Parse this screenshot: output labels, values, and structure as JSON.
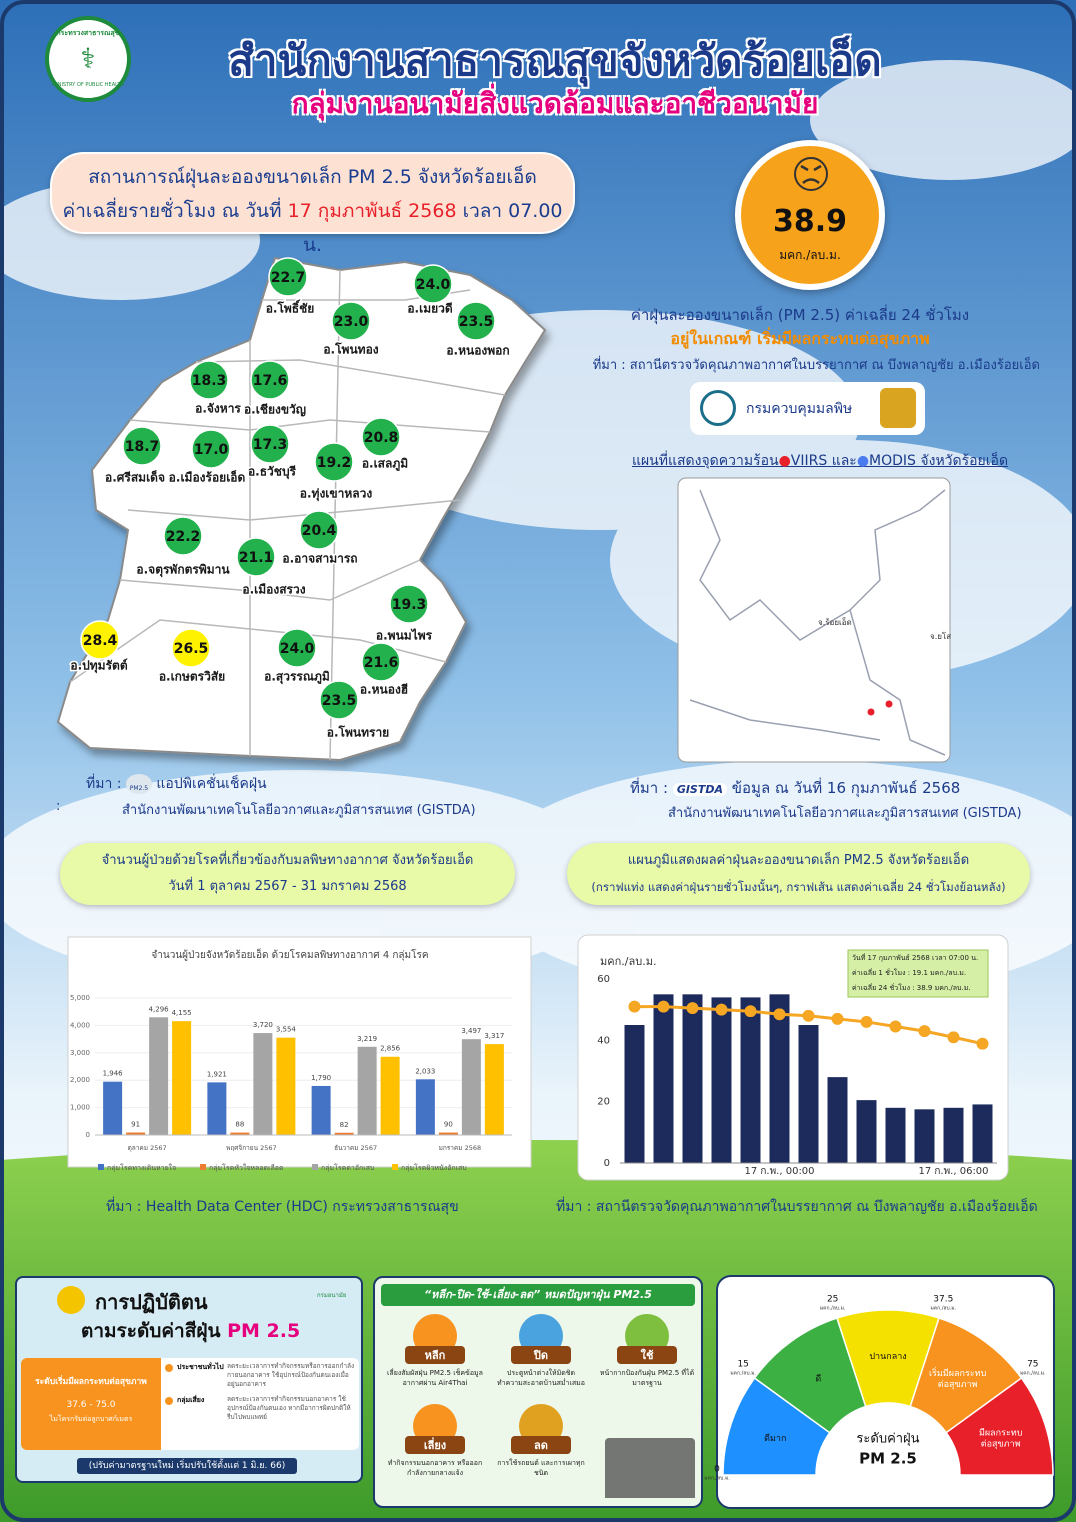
{
  "header": {
    "logo_text": "กระทรวงสาธารณสุข",
    "logo_subtext": "MINISTRY OF PUBLIC HEALTH",
    "title": "สำนักงานสาธารณสุขจังหวัดร้อยเอ็ด",
    "subtitle": "กลุ่มงานอนามัยสิ่งแวดล้อมและอาชีวอนามัย"
  },
  "situation": {
    "line1": "สถานการณ์ฝุ่นละอองขนาดเล็ก PM 2.5 จังหวัดร้อยเอ็ด",
    "line2_prefix": "ค่าเฉลี่ยรายชั่วโมง ณ วันที่",
    "line2_date": "17 กุมภาพันธ์ 2568",
    "line2_suffix": "เวลา 07.00 น."
  },
  "aqi": {
    "value": "38.9",
    "unit": "มคก./ลบ.ม.",
    "description": "ค่าฝุ่นละอองขนาดเล็ก (PM 2.5) ค่าเฉลี่ย 24 ชั่วโมง",
    "status": "อยู่ในเกณฑ์ เริ่มมีผลกระทบต่อสุขภาพ",
    "source": "ที่มา : สถานีตรวจวัดคุณภาพอากาศในบรรยากาศ ณ บึงพลาญชัย อ.เมืองร้อยเอ็ด",
    "logo_text": "กรมควบคุมมลพิษ"
  },
  "district_map": {
    "districts": [
      {
        "name": "อ.โพธิ์ชัย",
        "value": "22.7",
        "color": "#22b14c"
      },
      {
        "name": "อ.เมยวดี",
        "value": "24.0",
        "color": "#22b14c"
      },
      {
        "name": "อ.โพนทอง",
        "value": "23.0",
        "color": "#22b14c"
      },
      {
        "name": "อ.หนองพอก",
        "value": "23.5",
        "color": "#22b14c"
      },
      {
        "name": "อ.จังหาร",
        "value": "18.3",
        "color": "#22b14c"
      },
      {
        "name": "อ.เชียงขวัญ",
        "value": "17.6",
        "color": "#22b14c"
      },
      {
        "name": "อ.ศรีสมเด็จ",
        "value": "18.7",
        "color": "#22b14c"
      },
      {
        "name": "อ.เมืองร้อยเอ็ด",
        "value": "17.0",
        "color": "#22b14c"
      },
      {
        "name": "อ.ธวัชบุรี",
        "value": "17.3",
        "color": "#22b14c"
      },
      {
        "name": "อ.ทุ่งเขาหลวง",
        "value": "19.2",
        "color": "#22b14c"
      },
      {
        "name": "อ.เสลภูมิ",
        "value": "20.8",
        "color": "#22b14c"
      },
      {
        "name": "อ.อาจสามารถ",
        "value": "20.4",
        "color": "#22b14c"
      },
      {
        "name": "อ.จตุรพักตรพิมาน",
        "value": "22.2",
        "color": "#22b14c"
      },
      {
        "name": "อ.เมืองสรวง",
        "value": "21.1",
        "color": "#22b14c"
      },
      {
        "name": "อ.พนมไพร",
        "value": "19.3",
        "color": "#22b14c"
      },
      {
        "name": "อ.ปทุมรัตต์",
        "value": "28.4",
        "color": "#fff200"
      },
      {
        "name": "อ.เกษตรวิสัย",
        "value": "26.5",
        "color": "#fff200"
      },
      {
        "name": "อ.สุวรรณภูมิ",
        "value": "24.0",
        "color": "#22b14c"
      },
      {
        "name": "อ.หนองฮี",
        "value": "21.6",
        "color": "#22b14c"
      },
      {
        "name": "อ.โพนทราย",
        "value": "23.5",
        "color": "#22b14c"
      }
    ],
    "source_label": "ที่มา :",
    "app_icon": "PM2.5",
    "source_app": "แอปพิเคชั่นเช็คฝุ่น",
    "source_sep": ":",
    "source_org": "สำนักงานพัฒนาเทคโนโลยีอวกาศและภูมิสารสนเทศ (GISTDA)"
  },
  "hotspot_map": {
    "title_prefix": "แผนที่แสดงจุดความร้อน",
    "viirs": "VIIRS",
    "and": "และ",
    "modis": "MODIS",
    "title_suffix": "จังหวัดร้อยเอ็ด",
    "labels": [
      "จ.ร้อยเอ็ด",
      "จ.ยโส"
    ],
    "source_label": "ที่มา :",
    "source_logo": "GISTDA",
    "source_date": "ข้อมูล ณ วันที่ 16 กุมภาพันธ์ 2568",
    "source_org": "สำนักงานพัฒนาเทคโนโลยีอวกาศและภูมิสารสนเทศ (GISTDA)"
  },
  "patients_heading": {
    "line1": "จำนวนผู้ป่วยด้วยโรคที่เกี่ยวข้องกับมลพิษทางอากาศ จังหวัดร้อยเอ็ด",
    "line2": "วันที่ 1 ตุลาคม 2567 - 31 มกราคม 2568"
  },
  "pm_heading": {
    "line1": "แผนภูมิแสดงผลค่าฝุ่นละอองขนาดเล็ก PM2.5 จังหวัดร้อยเอ็ด",
    "line2": "(กราฟแท่ง แสดงค่าฝุ่นรายชั่วโมงนั้นๆ, กราฟเส้น แสดงค่าเฉลี่ย 24 ชั่วโมงย้อนหลัง)"
  },
  "chart_data": [
    {
      "type": "bar",
      "title": "จำนวนผู้ป่วยจังหวัดร้อยเอ็ด ด้วยโรคมลพิษทางอากาศ 4 กลุ่มโรค",
      "categories": [
        "ตุลาคม 2567",
        "พฤศจิกายน 2567",
        "ธันวาคม 2567",
        "มกราคม 2568"
      ],
      "series": [
        {
          "name": "กลุ่มโรคทางเดินหายใจ",
          "color": "#4472c4",
          "values": [
            1946,
            1921,
            1790,
            2033
          ],
          "value_labels": [
            "1,946",
            "1,921",
            "1,790",
            "2,033"
          ]
        },
        {
          "name": "กลุ่มโรคหัวใจหลอดเลือด",
          "color": "#ed7d31",
          "values": [
            91,
            88,
            82,
            90
          ],
          "value_labels": [
            "91",
            "88",
            "82",
            "90"
          ]
        },
        {
          "name": "กลุ่มโรคตาอักเสบ",
          "color": "#a5a5a5",
          "values": [
            4296,
            3720,
            3219,
            3497
          ],
          "value_labels": [
            "4,296",
            "3,720",
            "3,219",
            "3,497"
          ]
        },
        {
          "name": "กลุ่มโรคผิวหนังอักเสบ",
          "color": "#ffc000",
          "values": [
            4155,
            3554,
            2856,
            3317
          ],
          "value_labels": [
            "4,155",
            "3,554",
            "2,856",
            "3,317"
          ]
        }
      ],
      "ylim": [
        0,
        5000
      ],
      "yticks": [
        0,
        {
          "value": 1000,
          "label": "1,000"
        },
        {
          "value": 2000,
          "label": "2,000"
        },
        {
          "value": 3000,
          "label": "3,000"
        },
        {
          "value": 4000,
          "label": "4,000"
        },
        {
          "value": 5000,
          "label": "5,000"
        }
      ],
      "legend": "bottom"
    },
    {
      "type": "bar-line",
      "y_label": "มคก./ลบ.ม.",
      "categories": [
        null,
        null,
        null,
        null,
        null,
        "17 ก.พ., 00:00",
        null,
        null,
        null,
        null,
        null,
        "17 ก.พ., 06:00",
        null
      ],
      "series": [
        {
          "color": "#1c2b5c",
          "values": [
            45,
            55,
            55,
            54,
            54,
            55,
            45,
            28,
            20.5,
            18,
            17.5,
            18,
            19.1
          ]
        },
        {
          "color": "#f5a623",
          "values": [
            51,
            51,
            50.5,
            50,
            49.5,
            48.5,
            48,
            47,
            46,
            44.5,
            43,
            41,
            38.9
          ]
        }
      ],
      "ylim": [
        0,
        60
      ],
      "yticks": [
        0,
        20,
        40,
        60
      ],
      "grid": false,
      "annotations": [
        "วันที่ 17 กุมภาพันธ์ 2568 เวลา 07:00 น.",
        "ค่าเฉลี่ย 1 ชั่วโมง : 19.1 มคก./ลบ.ม.",
        "ค่าเฉลี่ย 24 ชั่วโมง : 38.9 มคก./ลบ.ม."
      ]
    }
  ],
  "patients_source": "ที่มา :  Health Data Center (HDC) กระทรวงสาธารณสุข",
  "pm_source": "ที่มา : สถานีตรวจวัดคุณภาพอากาศในบรรยากาศ ณ บึงพลาญชัย อ.เมืองร้อยเอ็ด",
  "guide_panel": {
    "title1": "การปฏิบัติตน",
    "title2": "ตามระดับค่าสีฝุ่น",
    "title3": "PM 2.5",
    "logo": "กรมอนามัย",
    "level": "ระดับเริ่มมีผลกระทบต่อสุขภาพ",
    "range": "37.6 - 75.0",
    "unit": "ไมโครกรัมต่อลูกบาศก์เมตร",
    "groups": [
      {
        "name": "ประชาชนทั่วไป",
        "text": "ลดระยะเวลาการทำกิจกรรมหรือการออกกำลังกายนอกอาคาร ใช้อุปกรณ์ป้องกันตนเองเมื่ออยู่นอกอาคาร"
      },
      {
        "name": "กลุ่มเสี่ยง",
        "text": "ลดระยะเวลาการทำกิจกรรมนอกอาคาร ใช้อุปกรณ์ป้องกันตนเอง หากมีอาการผิดปกติให้รีบไปพบแพทย์"
      }
    ],
    "footer": "(ปรับค่ามาตรฐานใหม่ เริ่มปรับใช้ตั้งแต่ 1 มิ.ย. 66)"
  },
  "tips_panel": {
    "title": "“หลีก-ปิด-ใช้-เลี่ยง-ลด” หมดปัญหาฝุ่น PM2.5",
    "items": [
      {
        "keyword": "หลีก",
        "text": "เลี่ยงสัมผัสฝุ่น PM2.5 เช็คข้อมูลอากาศผ่าน Air4Thai"
      },
      {
        "keyword": "ปิด",
        "text": "ประตูหน้าต่างให้มิดชิด ทำความสะอาดบ้านสม่ำเสมอ"
      },
      {
        "keyword": "ใช้",
        "text": "หน้ากากป้องกันฝุ่น PM2.5 ที่ได้มาตรฐาน"
      },
      {
        "keyword": "เลี่ยง",
        "text": "ทำกิจกรรมนอกอาคาร หรือออกกำลังกายกลางแจ้ง"
      },
      {
        "keyword": "ลด",
        "text": "การใช้รถยนต์ และการเผาทุกชนิด"
      }
    ]
  },
  "gauge_panel": {
    "title": "ระดับค่าฝุ่น",
    "subtitle": "PM 2.5",
    "tick_unit": "มคก./ลบ.ม.",
    "ticks": [
      "0",
      "15",
      "25",
      "37.5",
      "75"
    ],
    "levels": [
      {
        "lines": [
          "ดีมาก"
        ],
        "color": "#1e90ff"
      },
      {
        "lines": [
          "ดี"
        ],
        "color": "#3cb043"
      },
      {
        "lines": [
          "ปานกลาง"
        ],
        "color": "#f5e100"
      },
      {
        "lines": [
          "เริ่มมีผลกระทบ",
          "ต่อสุขภาพ"
        ],
        "color": "#f7931e"
      },
      {
        "lines": [
          "มีผลกระทบ",
          "ต่อสุขภาพ"
        ],
        "color": "#e8202a"
      }
    ]
  }
}
